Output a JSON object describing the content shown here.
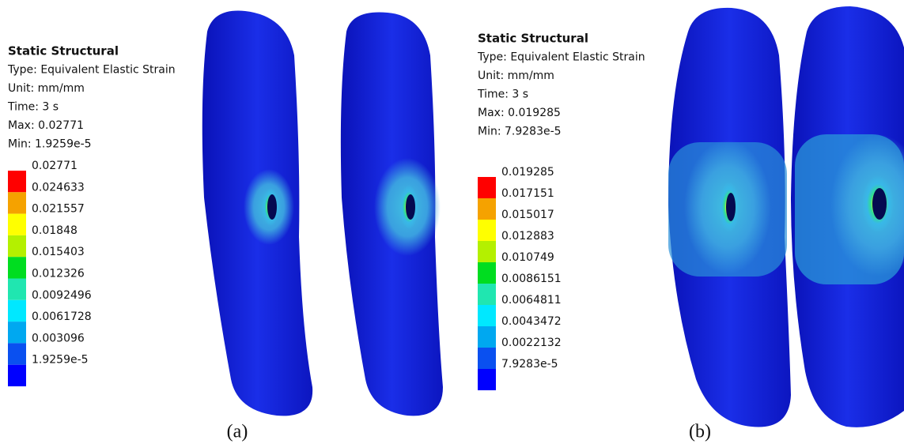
{
  "panels": [
    {
      "title": "Static Structural",
      "type": "Type: Equivalent Elastic Strain",
      "unit": "Unit: mm/mm",
      "time": "Time: 3 s",
      "max": "Max: 0.02771",
      "min": "Min: 1.9259e-5",
      "legend": [
        "0.02771",
        "0.024633",
        "0.021557",
        "0.01848",
        "0.015403",
        "0.012326",
        "0.0092496",
        "0.0061728",
        "0.003096",
        "1.9259e-5"
      ],
      "caption": "(a)"
    },
    {
      "title": "Static Structural",
      "type": "Type: Equivalent Elastic Strain",
      "unit": "Unit: mm/mm",
      "time": "Time: 3 s",
      "max": "Max: 0.019285",
      "min": "Min: 7.9283e-5",
      "legend": [
        "0.019285",
        "0.017151",
        "0.015017",
        "0.012883",
        "0.010749",
        "0.0086151",
        "0.0064811",
        "0.0043472",
        "0.0022132",
        "7.9283e-5"
      ],
      "caption": "(b)"
    }
  ]
}
